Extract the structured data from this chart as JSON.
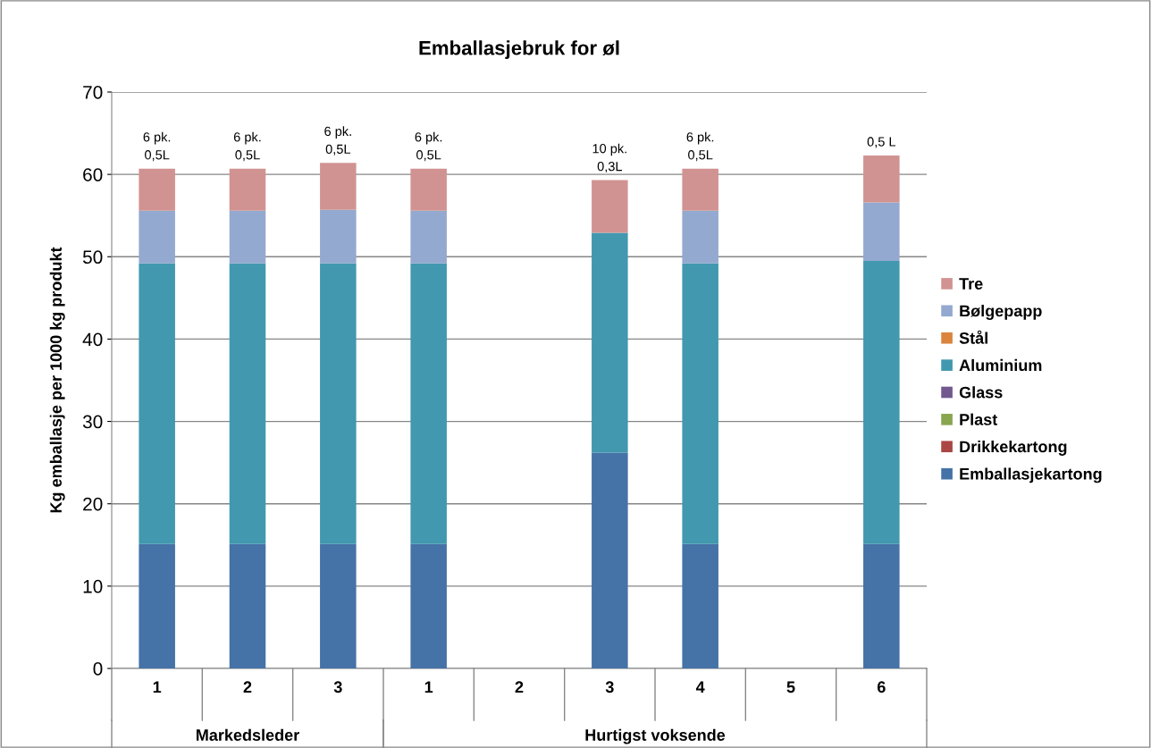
{
  "chart_data": {
    "type": "bar",
    "stacked": true,
    "title": "Emballasjebruk for øl",
    "ylabel": "Kg emballasje per 1000 kg produkt",
    "categories": [
      "1",
      "2",
      "3",
      "1",
      "2",
      "3",
      "4",
      "5",
      "6"
    ],
    "annotations": [
      "Markedsleder",
      "Hurtigst voksende",
      "6 pk.\n0,5L",
      "6 pk.\n0,5L",
      "6 pk.\n0,5L",
      "6 pk.\n0,5L",
      "10 pk.\n0,3L",
      "6 pk.\n0,5L",
      "0,5 L"
    ],
    "ylim": [
      0,
      70
    ],
    "yticks": [
      0,
      10,
      20,
      30,
      40,
      50,
      60,
      70
    ],
    "grid": "y",
    "legend": "right",
    "series": [
      {
        "name": "Emballasjekartong",
        "color": "#4572a7",
        "values": [
          15.1,
          15.1,
          15.1,
          15.1,
          null,
          26.2,
          15.1,
          null,
          15.1
        ]
      },
      {
        "name": "Drikkekartong",
        "color": "#aa4643",
        "values": [
          0,
          0,
          0,
          0,
          null,
          0,
          0,
          null,
          0
        ]
      },
      {
        "name": "Plast",
        "color": "#89a54e",
        "values": [
          0,
          0,
          0,
          0,
          null,
          0,
          0,
          null,
          0
        ]
      },
      {
        "name": "Glass",
        "color": "#71588f",
        "values": [
          0,
          0,
          0,
          0,
          null,
          0,
          0,
          null,
          0
        ]
      },
      {
        "name": "Aluminium",
        "color": "#4198af",
        "values": [
          34.1,
          34.1,
          34.1,
          34.1,
          null,
          26.7,
          34.1,
          null,
          34.4
        ]
      },
      {
        "name": "Stål",
        "color": "#db843d",
        "values": [
          0,
          0,
          0,
          0,
          null,
          0,
          0,
          null,
          0
        ]
      },
      {
        "name": "Bølgepapp",
        "color": "#93a9cf",
        "values": [
          6.4,
          6.4,
          6.5,
          6.4,
          null,
          0,
          6.4,
          null,
          7.1
        ]
      },
      {
        "name": "Tre",
        "color": "#d19392",
        "values": [
          5.1,
          5.1,
          5.7,
          5.1,
          null,
          6.4,
          5.1,
          null,
          5.7
        ]
      }
    ]
  }
}
